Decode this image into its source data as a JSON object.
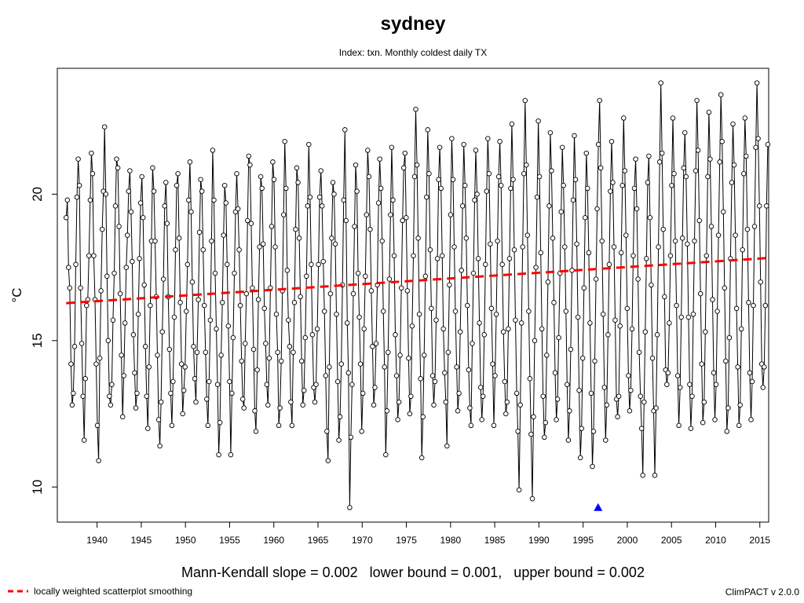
{
  "chart_data": {
    "type": "line",
    "title": "sydney",
    "subtitle": "Index: txn. Monthly coldest daily TX",
    "xlabel": "",
    "ylabel": "°C",
    "xlim": [
      1935.5,
      2016.0
    ],
    "ylim": [
      8.8,
      24.3
    ],
    "x_ticks": [
      1940,
      1945,
      1950,
      1955,
      1960,
      1965,
      1970,
      1975,
      1980,
      1985,
      1990,
      1995,
      2000,
      2005,
      2010,
      2015
    ],
    "y_ticks": [
      10,
      15,
      20
    ],
    "x_start": 1936.5,
    "x_end": 2015.9,
    "series": [
      {
        "style": "black line with open circle markers",
        "values": [
          19.2,
          19.8,
          17.5,
          16.8,
          14.2,
          12.8,
          13.2,
          14.8,
          17.6,
          19.9,
          21.2,
          20.3,
          16.8,
          14.9,
          13.1,
          11.6,
          13.7,
          16.2,
          16.4,
          17.9,
          19.8,
          21.4,
          20.7,
          17.9,
          16.4,
          14.2,
          12.1,
          10.9,
          14.4,
          16.7,
          18.8,
          20.1,
          22.3,
          20.0,
          17.2,
          15.0,
          13.1,
          12.8,
          13.5,
          15.7,
          17.3,
          19.6,
          21.2,
          20.9,
          18.9,
          16.6,
          14.5,
          12.4,
          13.8,
          15.6,
          17.5,
          18.6,
          20.1,
          20.8,
          19.4,
          17.7,
          15.2,
          13.9,
          12.7,
          13.2,
          15.9,
          17.8,
          19.7,
          20.6,
          19.2,
          16.9,
          14.8,
          13.1,
          12.0,
          14.1,
          16.2,
          18.4,
          20.9,
          20.1,
          18.4,
          16.5,
          14.5,
          12.3,
          11.4,
          12.9,
          15.3,
          17.1,
          19.6,
          20.4,
          19.0,
          16.5,
          14.7,
          13.2,
          12.1,
          13.6,
          15.8,
          18.1,
          20.3,
          20.7,
          18.5,
          16.3,
          14.2,
          12.5,
          13.3,
          14.1,
          16.0,
          17.6,
          19.8,
          21.1,
          19.4,
          17.0,
          14.8,
          13.7,
          12.9,
          14.6,
          16.4,
          18.7,
          20.5,
          20.1,
          18.1,
          16.2,
          14.6,
          13.0,
          12.1,
          13.6,
          15.7,
          18.4,
          21.5,
          19.8,
          17.3,
          15.4,
          13.5,
          11.1,
          12.2,
          14.5,
          16.3,
          18.6,
          20.3,
          19.7,
          17.6,
          15.5,
          13.6,
          11.1,
          13.2,
          15.1,
          17.3,
          19.4,
          20.7,
          19.5,
          18.1,
          16.2,
          14.3,
          13.0,
          12.7,
          14.9,
          16.6,
          19.1,
          21.3,
          21.0,
          19.0,
          16.8,
          14.7,
          12.6,
          11.9,
          14.0,
          16.4,
          18.2,
          20.6,
          20.2,
          18.3,
          16.1,
          14.9,
          13.5,
          12.8,
          14.4,
          16.8,
          18.9,
          21.1,
          20.5,
          18.2,
          15.9,
          14.6,
          12.1,
          12.7,
          14.3,
          16.7,
          19.3,
          21.8,
          20.2,
          17.4,
          15.7,
          14.8,
          12.9,
          12.1,
          14.6,
          16.3,
          18.8,
          20.9,
          20.4,
          18.5,
          16.5,
          14.3,
          12.8,
          13.3,
          15.1,
          17.2,
          19.6,
          21.7,
          19.9,
          17.6,
          15.2,
          13.4,
          12.9,
          13.5,
          15.4,
          17.6,
          19.9,
          20.8,
          19.6,
          17.7,
          16.0,
          13.8,
          11.9,
          10.9,
          14.1,
          16.6,
          18.5,
          20.4,
          20.0,
          18.3,
          15.9,
          13.6,
          11.6,
          12.4,
          14.2,
          16.9,
          19.8,
          22.2,
          19.1,
          15.6,
          13.9,
          9.3,
          11.7,
          13.5,
          16.6,
          18.9,
          21.0,
          20.1,
          17.3,
          15.8,
          14.2,
          11.9,
          13.2,
          15.4,
          17.2,
          19.3,
          21.5,
          20.6,
          18.8,
          16.7,
          14.8,
          12.8,
          13.4,
          14.9,
          16.9,
          19.7,
          21.2,
          20.2,
          18.4,
          16.0,
          14.1,
          11.1,
          12.6,
          14.6,
          17.1,
          19.3,
          21.6,
          19.8,
          17.9,
          15.2,
          13.8,
          12.3,
          12.9,
          14.5,
          16.8,
          19.1,
          20.9,
          21.4,
          19.2,
          16.7,
          14.4,
          12.5,
          13.1,
          15.5,
          17.9,
          20.6,
          22.9,
          21.0,
          18.5,
          15.9,
          13.7,
          11.0,
          12.4,
          14.5,
          17.2,
          19.9,
          22.2,
          20.7,
          18.1,
          16.1,
          13.8,
          12.8,
          13.6,
          15.7,
          17.8,
          20.5,
          21.6,
          20.2,
          17.9,
          15.4,
          13.9,
          12.9,
          11.4,
          14.6,
          16.9,
          19.3,
          21.9,
          20.5,
          18.2,
          16.0,
          14.1,
          12.6,
          13.2,
          15.3,
          17.4,
          19.6,
          21.7,
          20.3,
          18.5,
          16.2,
          14.0,
          12.7,
          12.1,
          14.9,
          17.3,
          19.8,
          21.5,
          20.0,
          17.8,
          15.6,
          13.4,
          12.3,
          13.1,
          15.2,
          17.6,
          20.1,
          21.9,
          20.7,
          18.3,
          16.1,
          14.2,
          12.1,
          13.8,
          15.9,
          18.4,
          20.6,
          21.8,
          20.3,
          17.6,
          15.3,
          13.6,
          12.5,
          12.9,
          15.4,
          17.8,
          20.2,
          22.4,
          20.5,
          18.1,
          15.7,
          13.2,
          11.9,
          9.9,
          12.8,
          15.6,
          18.2,
          20.7,
          23.2,
          21.0,
          18.6,
          16.0,
          13.7,
          11.8,
          9.6,
          12.4,
          15.0,
          17.5,
          19.9,
          22.5,
          20.6,
          18.0,
          15.4,
          13.1,
          11.7,
          12.2,
          14.5,
          17.0,
          19.6,
          22.1,
          20.8,
          18.5,
          16.3,
          13.9,
          12.3,
          13.0,
          15.1,
          17.3,
          19.4,
          21.6,
          20.3,
          18.2,
          16.0,
          13.5,
          11.6,
          12.6,
          14.7,
          17.4,
          19.8,
          22.0,
          20.5,
          18.3,
          15.8,
          13.3,
          11.0,
          12.0,
          14.4,
          16.8,
          19.2,
          21.4,
          20.2,
          18.0,
          15.6,
          13.2,
          10.7,
          11.9,
          14.3,
          17.1,
          19.5,
          21.7,
          23.2,
          20.9,
          18.4,
          15.9,
          13.4,
          11.6,
          12.8,
          15.2,
          17.6,
          20.1,
          21.8,
          20.4,
          18.2,
          15.7,
          13.0,
          12.4,
          13.1,
          15.5,
          18.0,
          20.3,
          22.6,
          20.8,
          18.6,
          16.1,
          13.8,
          12.6,
          13.3,
          15.4,
          17.9,
          20.2,
          21.2,
          19.5,
          17.1,
          14.6,
          13.1,
          12.0,
          10.4,
          12.9,
          15.3,
          17.8,
          20.4,
          21.3,
          19.2,
          16.9,
          14.4,
          12.6,
          10.4,
          12.7,
          15.2,
          18.2,
          21.1,
          23.8,
          21.4,
          18.8,
          16.5,
          14.0,
          13.5,
          13.9,
          15.6,
          17.9,
          20.3,
          22.6,
          20.7,
          18.4,
          16.2,
          13.8,
          12.1,
          13.4,
          15.8,
          18.5,
          20.9,
          22.1,
          20.6,
          18.3,
          15.8,
          13.5,
          12.0,
          13.1,
          15.9,
          18.4,
          20.8,
          23.2,
          21.5,
          19.1,
          16.6,
          14.2,
          12.2,
          12.9,
          15.3,
          17.9,
          20.6,
          22.8,
          21.2,
          18.9,
          16.4,
          13.9,
          12.3,
          13.5,
          16.0,
          18.6,
          21.1,
          23.4,
          21.8,
          19.4,
          16.8,
          14.3,
          11.9,
          12.7,
          15.1,
          17.8,
          20.4,
          22.4,
          21.0,
          18.6,
          16.1,
          14.1,
          12.1,
          12.8,
          15.4,
          18.1,
          20.7,
          22.6,
          21.3,
          18.8,
          16.3,
          13.9,
          12.3,
          13.6,
          16.2,
          18.9,
          21.6,
          23.8,
          21.9,
          19.6,
          17.0,
          14.2,
          13.4,
          14.1,
          16.2,
          19.6,
          21.7
        ]
      },
      {
        "name": "locally weighted scatterplot smoothing",
        "style": "red dashed",
        "x": [
          1936.5,
          2015.9
        ],
        "values": [
          16.28,
          17.82
        ]
      }
    ],
    "marker": {
      "shape": "triangle",
      "color": "#0000ff",
      "x": 1996.7,
      "y": 9.3
    },
    "grid": false,
    "legend": "bottom-left",
    "colors": {
      "data": "#000000",
      "trend": "#ff0000",
      "marker": "#0000ff"
    }
  },
  "stats_text": "Mann-Kendall slope = 0.002   lower bound = 0.001,   upper bound = 0.002",
  "legend_label": "locally weighted scatterplot smoothing",
  "credit": "ClimPACT v 2.0.0"
}
